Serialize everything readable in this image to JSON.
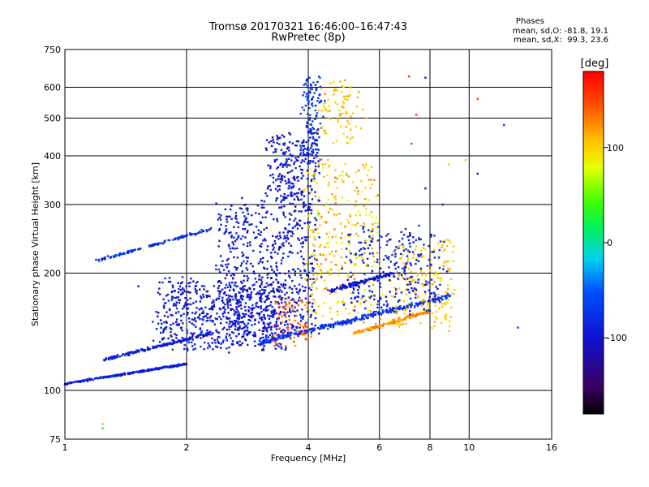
{
  "title": {
    "line1": "Tromsø 20170321 16:46:00–16:47:43",
    "line2": "RwPretec (8p)"
  },
  "stats": {
    "heading": "Phases",
    "line1": "mean, sd,O: -81.8, 19.1",
    "line2": "mean, sd,X:  99.3, 23.6"
  },
  "colorbar": {
    "label": "[deg]",
    "ticks": [
      "100",
      "0",
      "-100"
    ],
    "tick_values": [
      100,
      0,
      -100
    ],
    "range": [
      -180,
      180
    ]
  },
  "chart_data": {
    "type": "scatter",
    "xlabel": "Frequency [MHz]",
    "ylabel": "Stationary phase Virtual Height [km]",
    "x_scale": "log",
    "y_scale": "log",
    "xlim": [
      1,
      16
    ],
    "ylim": [
      75,
      750
    ],
    "x_ticks": [
      1,
      2,
      4,
      6,
      8,
      10,
      16
    ],
    "x_tick_labels": [
      "1",
      "2",
      "4",
      "6",
      "8",
      "10",
      "16"
    ],
    "y_ticks": [
      75,
      100,
      200,
      300,
      400,
      500,
      600,
      750
    ],
    "y_tick_labels": [
      "75",
      "100",
      "200",
      "300",
      "400",
      "500",
      "600",
      "750"
    ],
    "grid": true,
    "color_encoding": "phase [deg]",
    "clusters": [
      {
        "x": [
          1.0,
          2.0
        ],
        "y": [
          104,
          117
        ],
        "spread": 0.03,
        "count": 260,
        "phase": [
          -100,
          -80
        ]
      },
      {
        "x": [
          1.25,
          2.3
        ],
        "y": [
          120,
          140
        ],
        "spread": 0.05,
        "count": 170,
        "phase": [
          -100,
          -85
        ]
      },
      {
        "x": [
          1.2,
          2.3
        ],
        "y": [
          215,
          260
        ],
        "spread": 0.04,
        "count": 130,
        "phase": [
          -95,
          -55
        ]
      },
      {
        "x": [
          1.7,
          3.5
        ],
        "y": [
          128,
          190
        ],
        "spread": 0.18,
        "count": 620,
        "phase": [
          -120,
          -70
        ]
      },
      {
        "x": [
          2.4,
          4.2
        ],
        "y": [
          140,
          300
        ],
        "spread": 0.18,
        "count": 620,
        "phase": [
          -115,
          -80
        ]
      },
      {
        "x": [
          3.2,
          4.2
        ],
        "y": [
          300,
          450
        ],
        "spread": 0.15,
        "count": 240,
        "phase": [
          -110,
          -80
        ]
      },
      {
        "x": [
          3.9,
          4.3
        ],
        "y": [
          380,
          640
        ],
        "spread": 0.12,
        "count": 130,
        "phase": [
          -100,
          -40
        ]
      },
      {
        "x": [
          4.0,
          6.0
        ],
        "y": [
          150,
          390
        ],
        "spread": 0.2,
        "count": 300,
        "phase": [
          70,
          130
        ]
      },
      {
        "x": [
          4.3,
          5.4
        ],
        "y": [
          430,
          620
        ],
        "spread": 0.15,
        "count": 80,
        "phase": [
          95,
          120
        ]
      },
      {
        "x": [
          3.0,
          9.0
        ],
        "y": [
          132,
          175
        ],
        "spread": 0.08,
        "count": 320,
        "phase": [
          -90,
          -60
        ]
      },
      {
        "x": [
          5.2,
          8.0
        ],
        "y": [
          140,
          160
        ],
        "spread": 0.05,
        "count": 160,
        "phase": [
          110,
          140
        ]
      },
      {
        "x": [
          6.5,
          9.2
        ],
        "y": [
          145,
          240
        ],
        "spread": 0.15,
        "count": 180,
        "phase": [
          95,
          115
        ]
      },
      {
        "x": [
          5.0,
          8.5
        ],
        "y": [
          160,
          260
        ],
        "spread": 0.2,
        "count": 260,
        "phase": [
          -100,
          -70
        ]
      },
      {
        "x": [
          4.5,
          6.5
        ],
        "y": [
          180,
          200
        ],
        "spread": 0.06,
        "count": 120,
        "phase": [
          -110,
          -90
        ]
      },
      {
        "x": [
          3.3,
          4.0
        ],
        "y": [
          130,
          175
        ],
        "spread": 0.12,
        "count": 70,
        "phase": [
          120,
          170
        ]
      }
    ],
    "outliers": [
      {
        "x": 1.24,
        "y": 80,
        "phase": 10
      },
      {
        "x": 1.24,
        "y": 82,
        "phase": 110
      },
      {
        "x": 7.1,
        "y": 640,
        "phase": 160
      },
      {
        "x": 7.8,
        "y": 635,
        "phase": -100
      },
      {
        "x": 10.5,
        "y": 560,
        "phase": 150
      },
      {
        "x": 12.2,
        "y": 480,
        "phase": -80
      },
      {
        "x": 13.2,
        "y": 145,
        "phase": -70
      },
      {
        "x": 10.5,
        "y": 360,
        "phase": -120
      },
      {
        "x": 7.8,
        "y": 330,
        "phase": -120
      },
      {
        "x": 8.6,
        "y": 300,
        "phase": -90
      },
      {
        "x": 7.2,
        "y": 430,
        "phase": 160
      },
      {
        "x": 7.4,
        "y": 510,
        "phase": 160
      },
      {
        "x": 8.9,
        "y": 380,
        "phase": 100
      },
      {
        "x": 9.8,
        "y": 390,
        "phase": 110
      },
      {
        "x": 1.52,
        "y": 185,
        "phase": -100
      },
      {
        "x": 1.65,
        "y": 150,
        "phase": -70
      }
    ]
  }
}
